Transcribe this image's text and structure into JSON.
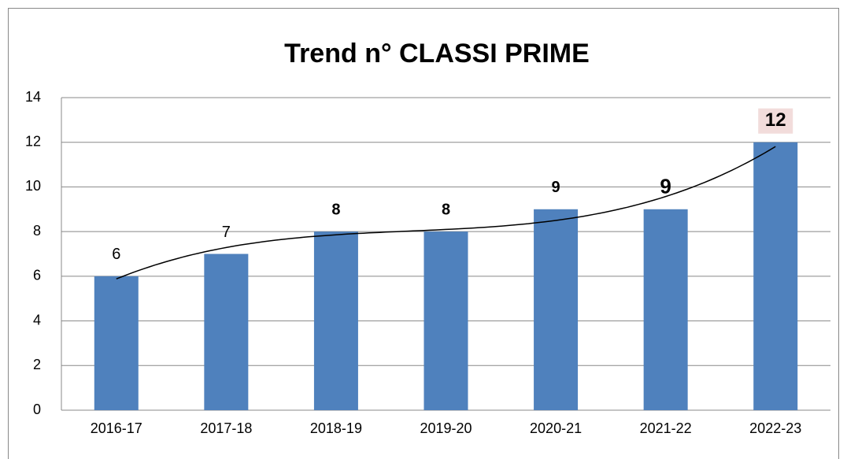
{
  "chart_data": {
    "type": "bar",
    "title": "Trend n° CLASSI PRIME",
    "categories": [
      "2016-17",
      "2017-18",
      "2018-19",
      "2019-20",
      "2020-21",
      "2021-22",
      "2022-23"
    ],
    "values": [
      6,
      7,
      8,
      8,
      9,
      9,
      12
    ],
    "color": "#4f81bd",
    "ylim": [
      0,
      14
    ],
    "yticks": [
      0,
      2,
      4,
      6,
      8,
      10,
      12,
      14
    ],
    "grid": true,
    "trendline": "polynomial"
  }
}
